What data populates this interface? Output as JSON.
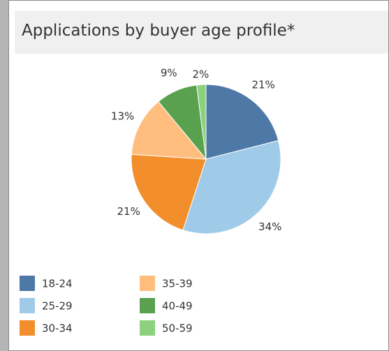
{
  "chart_data": {
    "type": "pie",
    "title": "Applications by buyer age profile*",
    "categories": [
      "18-24",
      "25-29",
      "30-34",
      "35-39",
      "40-49",
      "50-59"
    ],
    "values": [
      21,
      34,
      21,
      13,
      9,
      2
    ],
    "value_labels": [
      "21%",
      "34%",
      "21%",
      "13%",
      "9%",
      "2%"
    ],
    "colors": [
      "#4e79a7",
      "#a0cbe8",
      "#f28e2b",
      "#ffbe7d",
      "#59a14f",
      "#8cd17d"
    ],
    "legend": "bottom"
  }
}
